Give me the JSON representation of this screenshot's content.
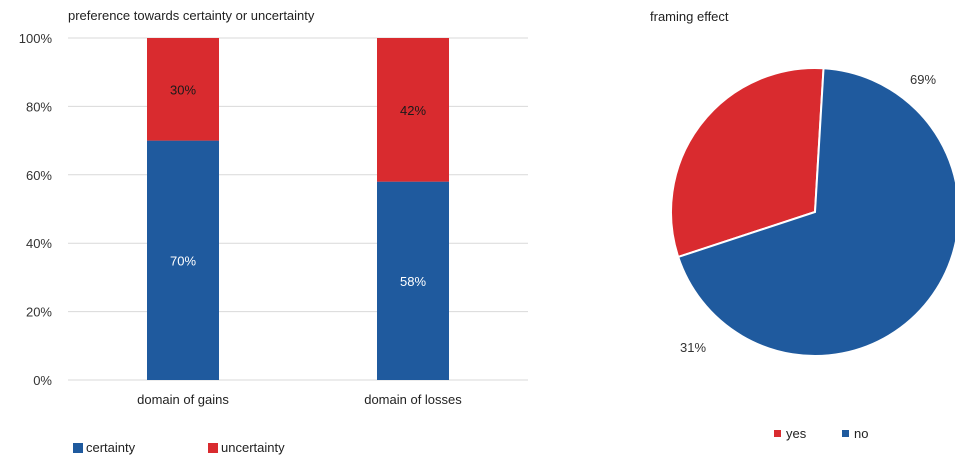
{
  "chart_data": [
    {
      "type": "bar",
      "stacked": true,
      "title": "preference towards certainty or uncertainty",
      "categories": [
        "domain of gains",
        "domain of losses"
      ],
      "series": [
        {
          "name": "certainty",
          "values": [
            70,
            58
          ],
          "labels": [
            "70%",
            "58%"
          ],
          "color": "#1f5a9e"
        },
        {
          "name": "uncertainty",
          "values": [
            30,
            42
          ],
          "labels": [
            "30%",
            "42%"
          ],
          "color": "#d92b2f"
        }
      ],
      "ylim": [
        0,
        100
      ],
      "yticks": [
        0,
        20,
        40,
        60,
        80,
        100
      ],
      "ytick_labels": [
        "0%",
        "20%",
        "40%",
        "60%",
        "80%",
        "100%"
      ],
      "grid": true,
      "legend": "bottom-left"
    },
    {
      "type": "pie",
      "title": "framing effect",
      "slices": [
        {
          "name": "yes",
          "value": 31,
          "label": "31%",
          "color": "#d92b2f"
        },
        {
          "name": "no",
          "value": 69,
          "label": "69%",
          "color": "#1f5a9e"
        }
      ],
      "legend": "bottom"
    }
  ]
}
